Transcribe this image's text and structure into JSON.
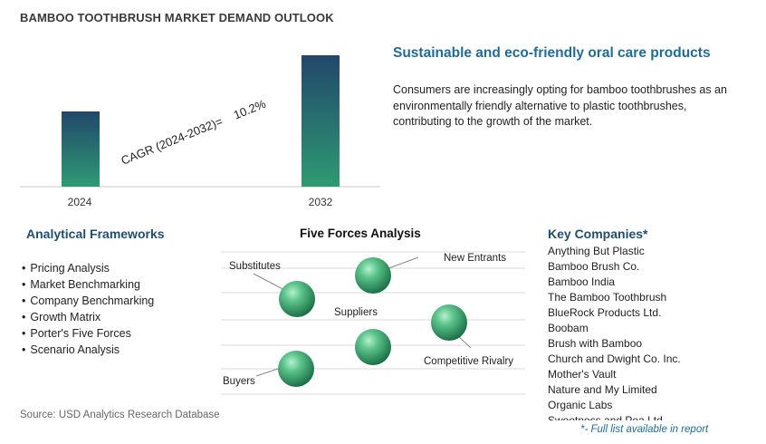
{
  "header": {
    "title": "BAMBOO TOOTHBRUSH MARKET DEMAND OUTLOOK"
  },
  "chart_data": {
    "type": "bar",
    "categories": [
      "2024",
      "2032"
    ],
    "annotation": "CAGR (2024-2032)=    10.2%",
    "colors": {
      "bar_top": "#22476b",
      "bar_bottom": "#2e9a73"
    }
  },
  "highlight": {
    "title": "Sustainable and eco-friendly oral care products",
    "text": "Consumers are increasingly opting for bamboo toothbrushes as an environmentally friendly alternative to plastic toothbrushes, contributing to the growth of the market."
  },
  "frameworks": {
    "title": "Analytical Frameworks",
    "items": [
      "Pricing Analysis",
      "Market Benchmarking",
      "Company Benchmarking",
      "Growth Matrix",
      "Porter's Five Forces",
      "Scenario Analysis"
    ]
  },
  "five_forces": {
    "title": "Five Forces Analysis",
    "labels": {
      "substitutes": "Substitutes",
      "new_entrants": "New Entrants",
      "suppliers": "Suppliers",
      "competitive_rivalry": "Competitive Rivalry",
      "buyers": "Buyers"
    },
    "colors": {
      "sphere_light": "#7fd6a6",
      "sphere_dark": "#1a6e45"
    }
  },
  "companies": {
    "title": "Key Companies*",
    "items": [
      "Anything But Plastic",
      "Bamboo Brush Co.",
      "Bamboo India",
      "The Bamboo Toothbrush",
      "BlueRock Products Ltd.",
      "Boobam",
      "Brush with Bamboo",
      "Church and Dwight Co. Inc.",
      "Mother's Vault",
      "Nature and My Limited",
      "Organic Labs",
      "Sweetness and Pea Ltd"
    ],
    "note": "*- Full list available in report"
  },
  "source": "Source: USD Analytics Research Database"
}
